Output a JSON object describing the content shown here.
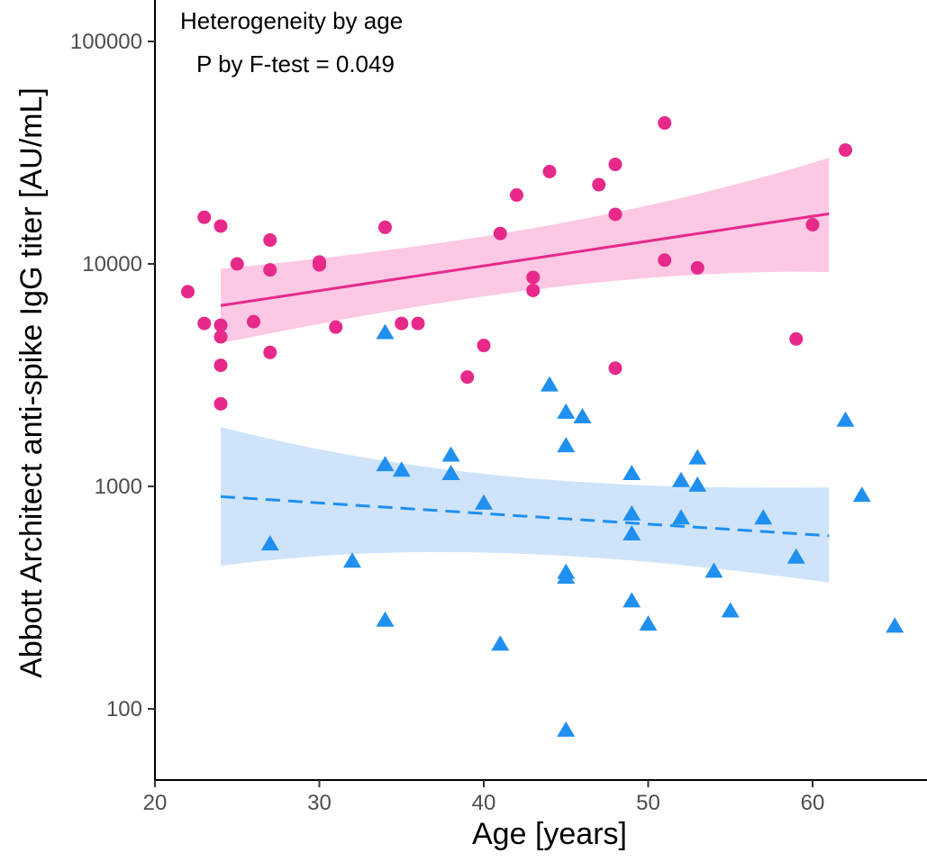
{
  "chart_data": {
    "type": "scatter",
    "title": "",
    "xlabel": "Age [years]",
    "ylabel": "Abbott Architect anti-spike IgG titer [AU/mL]",
    "x_scale": "linear",
    "y_scale": "log",
    "xlim": [
      20,
      66
    ],
    "ylim": [
      50,
      150000
    ],
    "x_ticks": [
      20,
      30,
      40,
      50,
      60
    ],
    "y_ticks": [
      100,
      1000,
      10000,
      100000
    ],
    "y_tick_labels": [
      "100",
      "1000",
      "10000",
      "100000"
    ],
    "grid": false,
    "legend": "none",
    "annotations": [
      "Heterogeneity by age",
      "P by F-test = 0.049"
    ],
    "series": [
      {
        "marker": "circle",
        "color": "#e7298a",
        "points": [
          [
            22,
            7500
          ],
          [
            23,
            16200
          ],
          [
            23,
            5400
          ],
          [
            24,
            14800
          ],
          [
            24,
            5300
          ],
          [
            24,
            4700
          ],
          [
            24,
            3500
          ],
          [
            24,
            2350
          ],
          [
            25,
            10000
          ],
          [
            26,
            5500
          ],
          [
            27,
            12800
          ],
          [
            27,
            9400
          ],
          [
            27,
            4000
          ],
          [
            30,
            10200
          ],
          [
            30,
            9900
          ],
          [
            31,
            5200
          ],
          [
            34,
            14600
          ],
          [
            35,
            5400
          ],
          [
            36,
            5400
          ],
          [
            39,
            3100
          ],
          [
            40,
            4300
          ],
          [
            41,
            13700
          ],
          [
            42,
            20400
          ],
          [
            43,
            8700
          ],
          [
            43,
            7600
          ],
          [
            44,
            26000
          ],
          [
            47,
            22700
          ],
          [
            48,
            28000
          ],
          [
            48,
            16700
          ],
          [
            48,
            3400
          ],
          [
            51,
            43000
          ],
          [
            51,
            10400
          ],
          [
            53,
            9600
          ],
          [
            59,
            4600
          ],
          [
            60,
            15000
          ],
          [
            62,
            32500
          ]
        ],
        "fit": {
          "style": "solid",
          "x": [
            24,
            61
          ],
          "y": [
            6500,
            16800
          ],
          "ci_lower": [
            4400,
            9200
          ],
          "ci_upper": [
            9500,
            30000
          ]
        }
      },
      {
        "marker": "triangle",
        "color": "#1f8ff0",
        "points": [
          [
            27,
            550
          ],
          [
            32,
            460
          ],
          [
            34,
            4900
          ],
          [
            34,
            1250
          ],
          [
            34,
            250
          ],
          [
            35,
            1180
          ],
          [
            38,
            1380
          ],
          [
            38,
            1140
          ],
          [
            40,
            840
          ],
          [
            41,
            195
          ],
          [
            44,
            2850
          ],
          [
            45,
            2150
          ],
          [
            45,
            1520
          ],
          [
            45,
            410
          ],
          [
            45,
            390
          ],
          [
            45,
            80
          ],
          [
            46,
            2050
          ],
          [
            49,
            1140
          ],
          [
            49,
            750
          ],
          [
            49,
            610
          ],
          [
            49,
            305
          ],
          [
            50,
            240
          ],
          [
            52,
            1060
          ],
          [
            52,
            720
          ],
          [
            53,
            1340
          ],
          [
            53,
            1010
          ],
          [
            54,
            415
          ],
          [
            55,
            275
          ],
          [
            57,
            720
          ],
          [
            59,
            480
          ],
          [
            62,
            1980
          ],
          [
            63,
            910
          ],
          [
            65,
            235
          ]
        ],
        "fit": {
          "style": "dashed",
          "x": [
            24,
            61
          ],
          "y": [
            900,
            600
          ],
          "ci_lower": [
            440,
            370
          ],
          "ci_upper": [
            1850,
            990
          ]
        }
      }
    ]
  }
}
